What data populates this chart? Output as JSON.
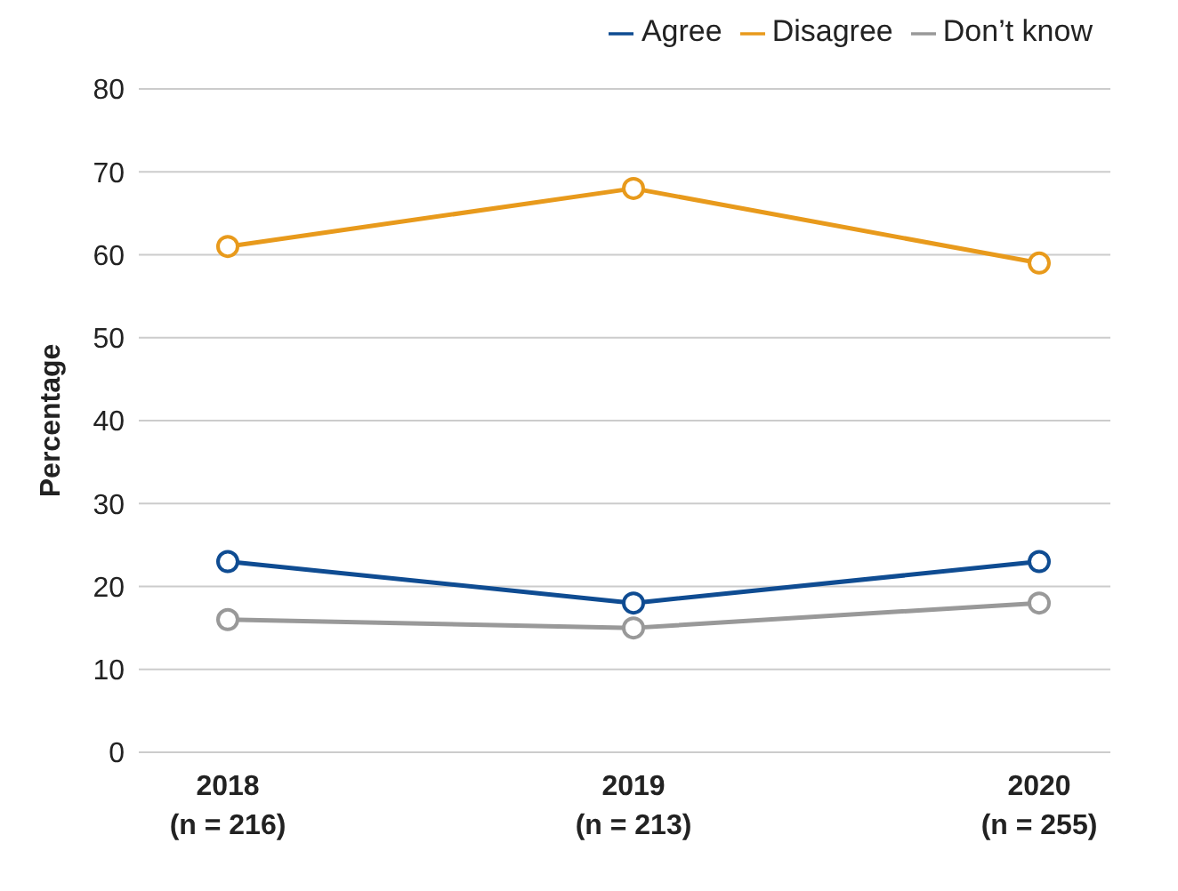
{
  "chart_data": {
    "type": "line",
    "ylabel": "Percentage",
    "categories": [
      "2018\n(n = 216)",
      "2019\n(n = 213)",
      "2020\n(n = 255)"
    ],
    "series": [
      {
        "name": "Agree",
        "color": "#0f4c92",
        "values": [
          23,
          18,
          23
        ]
      },
      {
        "name": "Don’t know",
        "color": "#999999",
        "values": [
          16,
          15,
          18
        ]
      },
      {
        "name": "Disagree",
        "color": "#e89a1c",
        "values": [
          61,
          68,
          59
        ]
      }
    ],
    "ylim": [
      0,
      80
    ],
    "yticks": [
      0,
      10,
      20,
      30,
      40,
      50,
      60,
      70,
      80
    ],
    "grid": "y",
    "legend": "top right",
    "marker": "circle",
    "line_style": "solid"
  }
}
